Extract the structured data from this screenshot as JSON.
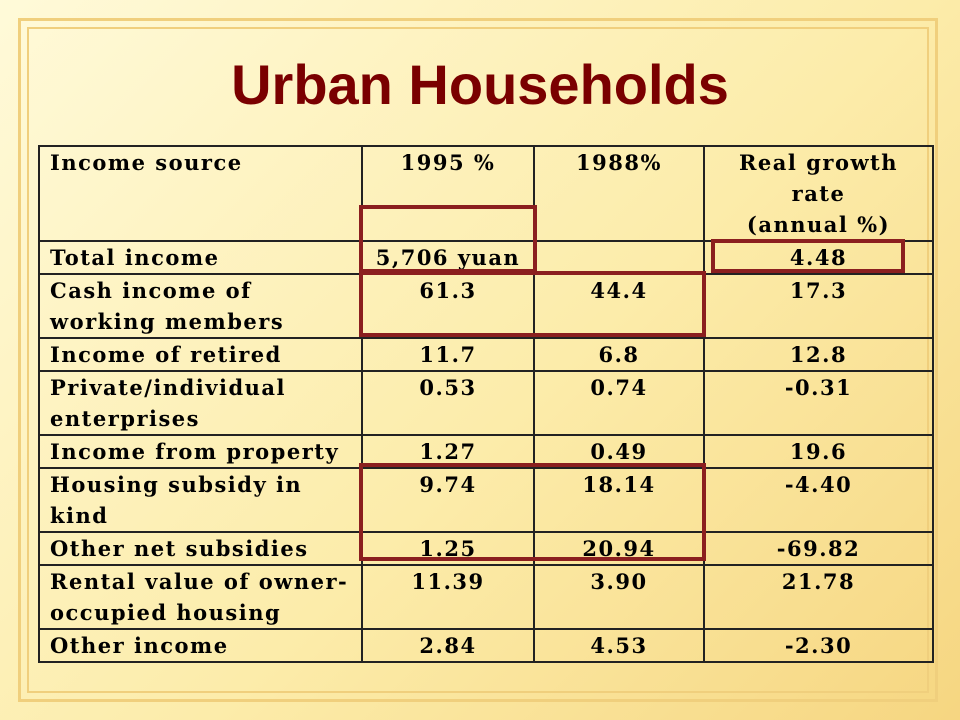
{
  "slide": {
    "title": "Urban Households"
  },
  "table": {
    "headers": {
      "source": "Income source",
      "y1995": "1995 %",
      "y1988": "1988%",
      "growth_line1": "Real growth",
      "growth_line2": "rate",
      "growth_line3": "(annual %)"
    },
    "rows": [
      {
        "source": "Total income",
        "y1995": "5,706 yuan",
        "y1988": "",
        "growth": "4.48"
      },
      {
        "source": "Cash income of working members",
        "y1995": "61.3",
        "y1988": "44.4",
        "growth": "17.3"
      },
      {
        "source": "Income of retired",
        "y1995": "11.7",
        "y1988": "6.8",
        "growth": "12.8"
      },
      {
        "source": "Private/individual enterprises",
        "y1995": "0.53",
        "y1988": "0.74",
        "growth": "-0.31"
      },
      {
        "source": "Income from property",
        "y1995": "1.27",
        "y1988": "0.49",
        "growth": "19.6"
      },
      {
        "source": "Housing subsidy in kind",
        "y1995": "9.74",
        "y1988": "18.14",
        "growth": "-4.40"
      },
      {
        "source": "Other net subsidies",
        "y1995": "1.25",
        "y1988": "20.94",
        "growth": "-69.82"
      },
      {
        "source": "Rental value of owner-occupied housing",
        "y1995": "11.39",
        "y1988": "3.90",
        "growth": "21.78"
      },
      {
        "source": "Other income",
        "y1995": "2.84",
        "y1988": "4.53",
        "growth": "-2.30"
      }
    ]
  },
  "highlight_color": "#8b1f1f"
}
